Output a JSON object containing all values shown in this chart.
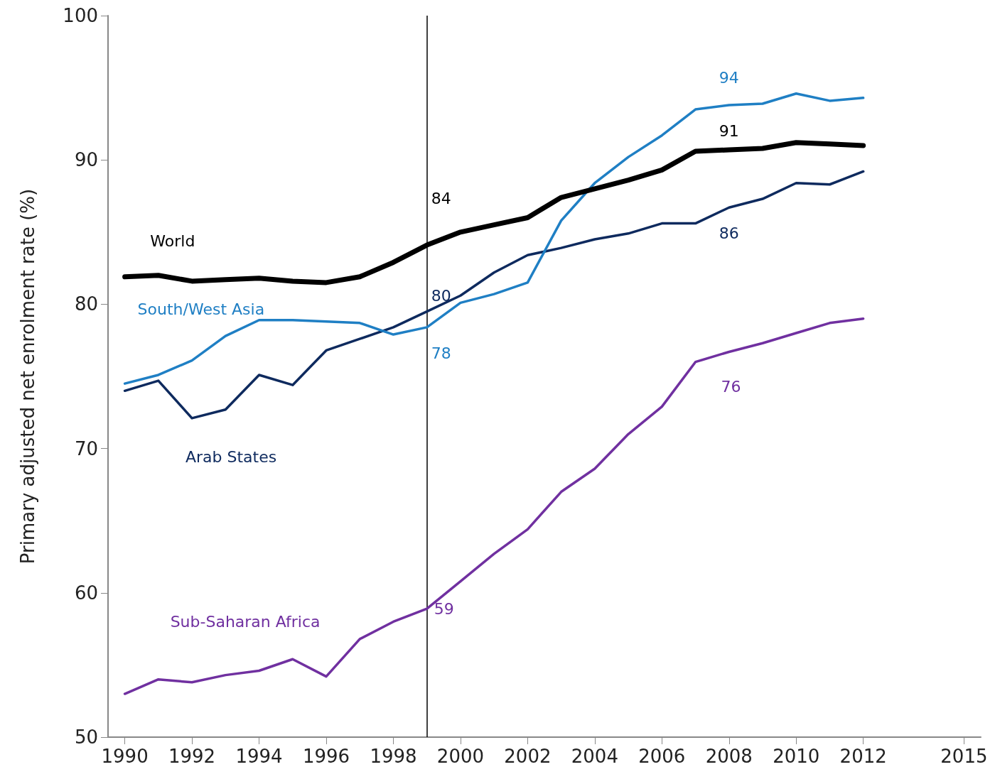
{
  "chart_data": {
    "type": "line",
    "ylabel": "Primary adjusted net enrolment rate (%)",
    "x": [
      1990,
      1991,
      1992,
      1993,
      1994,
      1995,
      1996,
      1997,
      1998,
      1999,
      2000,
      2001,
      2002,
      2003,
      2004,
      2005,
      2006,
      2007,
      2008,
      2009,
      2010,
      2011,
      2012
    ],
    "series": [
      {
        "name": "World",
        "color": "#000000",
        "values": [
          81.9,
          82.0,
          81.6,
          81.7,
          81.8,
          81.6,
          81.5,
          81.9,
          82.9,
          84.1,
          85.0,
          85.5,
          86.0,
          87.4,
          88.0,
          88.6,
          89.3,
          90.6,
          90.7,
          90.8,
          91.2,
          91.1,
          91.0
        ]
      },
      {
        "name": "South/West Asia",
        "color": "#1f7fc4",
        "values": [
          74.5,
          75.1,
          76.1,
          77.8,
          78.9,
          78.9,
          78.8,
          78.7,
          77.9,
          78.4,
          80.1,
          80.7,
          81.5,
          85.8,
          88.4,
          90.2,
          91.7,
          93.5,
          93.8,
          93.9,
          94.6,
          94.1,
          94.3
        ]
      },
      {
        "name": "Arab States",
        "color": "#0e2a5e",
        "values": [
          74.0,
          74.7,
          72.1,
          72.7,
          75.1,
          74.4,
          76.8,
          77.6,
          78.4,
          79.5,
          80.6,
          82.2,
          83.4,
          83.9,
          84.5,
          84.9,
          85.6,
          85.6,
          86.7,
          87.3,
          88.4,
          88.3,
          89.2
        ]
      },
      {
        "name": "Sub-Saharan Africa",
        "color": "#7030a0",
        "values": [
          53.0,
          54.0,
          53.8,
          54.3,
          54.6,
          55.4,
          54.2,
          56.8,
          58.0,
          58.9,
          60.8,
          62.7,
          64.4,
          67.0,
          68.6,
          71.0,
          72.9,
          76.0,
          76.7,
          77.3,
          78.0,
          78.7,
          79.0
        ]
      }
    ],
    "annotations": [
      {
        "text": "84",
        "x": 1999,
        "y": 84.1
      },
      {
        "text": "91",
        "x": 2008,
        "y": 90.7
      },
      {
        "text": "94",
        "x": 2008,
        "y": 93.8
      },
      {
        "text": "86",
        "x": 2008,
        "y": 86.7
      },
      {
        "text": "80",
        "x": 1999,
        "y": 79.5
      },
      {
        "text": "78",
        "x": 1999,
        "y": 78.4
      },
      {
        "text": "76",
        "x": 2007,
        "y": 76.0
      },
      {
        "text": "59",
        "x": 1999,
        "y": 58.9
      }
    ],
    "ref_lines": [
      {
        "axis": "x",
        "value": 1999,
        "color": "#000000"
      }
    ],
    "xlim": [
      1989.5,
      2015.5
    ],
    "xticks": [
      1990,
      1992,
      1994,
      1996,
      1998,
      2000,
      2002,
      2004,
      2006,
      2008,
      2010,
      2012,
      2015
    ],
    "ylim": [
      50,
      100
    ],
    "yticks": [
      50,
      60,
      70,
      80,
      90,
      100
    ],
    "grid": false,
    "legend": false,
    "marker": "none",
    "line_style": "solid"
  }
}
